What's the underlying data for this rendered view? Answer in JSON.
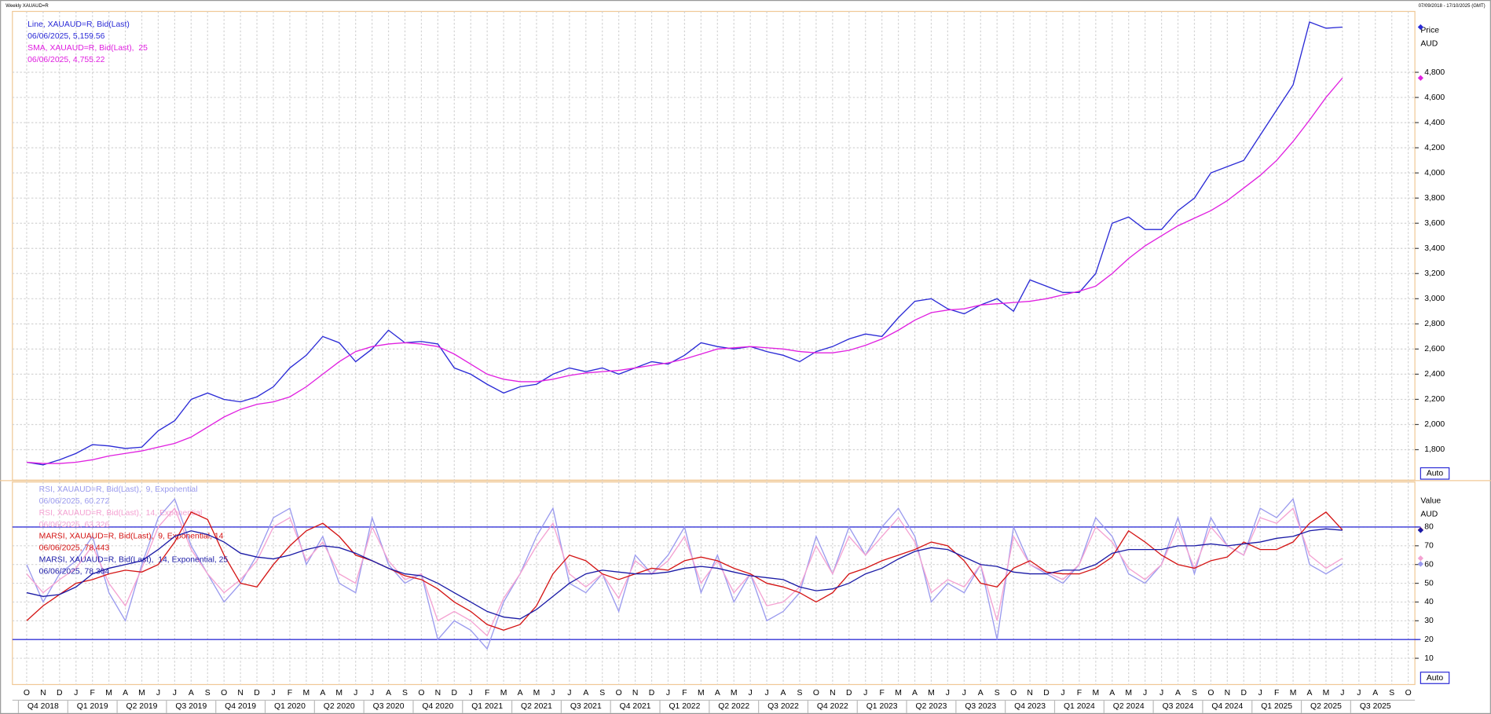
{
  "header": {
    "left": "Weekly XAUAUD=R",
    "right": "07/09/2018 - 17/10/2025 (GMT)"
  },
  "chart_data": [
    {
      "type": "line",
      "ylabel": "Price",
      "yunit": "AUD",
      "button": "Auto",
      "grid": true,
      "ylim": [
        1558,
        5284
      ],
      "yticks": [
        {
          "value": 1800,
          "label": "1,800"
        },
        {
          "value": 2000,
          "label": "2,000"
        },
        {
          "value": 2200,
          "label": "2,200"
        },
        {
          "value": 2400,
          "label": "2,400"
        },
        {
          "value": 2600,
          "label": "2,600"
        },
        {
          "value": 2800,
          "label": "2,800"
        },
        {
          "value": 3000,
          "label": "3,000"
        },
        {
          "value": 3200,
          "label": "3,200"
        },
        {
          "value": 3400,
          "label": "3,400"
        },
        {
          "value": 3600,
          "label": "3,600"
        },
        {
          "value": 3800,
          "label": "3,800"
        },
        {
          "value": 4000,
          "label": "4,000"
        },
        {
          "value": 4200,
          "label": "4,200"
        },
        {
          "value": 4400,
          "label": "4,400"
        },
        {
          "value": 4600,
          "label": "4,600"
        },
        {
          "value": 4800,
          "label": "4,800"
        }
      ],
      "x": [
        "2018-10",
        "2018-11",
        "2018-12",
        "2019-01",
        "2019-02",
        "2019-03",
        "2019-04",
        "2019-05",
        "2019-06",
        "2019-07",
        "2019-08",
        "2019-09",
        "2019-10",
        "2019-11",
        "2019-12",
        "2020-01",
        "2020-02",
        "2020-03",
        "2020-04",
        "2020-05",
        "2020-06",
        "2020-07",
        "2020-08",
        "2020-09",
        "2020-10",
        "2020-11",
        "2020-12",
        "2021-01",
        "2021-02",
        "2021-03",
        "2021-04",
        "2021-05",
        "2021-06",
        "2021-07",
        "2021-08",
        "2021-09",
        "2021-10",
        "2021-11",
        "2021-12",
        "2022-01",
        "2022-02",
        "2022-03",
        "2022-04",
        "2022-05",
        "2022-06",
        "2022-07",
        "2022-08",
        "2022-09",
        "2022-10",
        "2022-11",
        "2022-12",
        "2023-01",
        "2023-02",
        "2023-03",
        "2023-04",
        "2023-05",
        "2023-06",
        "2023-07",
        "2023-08",
        "2023-09",
        "2023-10",
        "2023-11",
        "2023-12",
        "2024-01",
        "2024-02",
        "2024-03",
        "2024-04",
        "2024-05",
        "2024-06",
        "2024-07",
        "2024-08",
        "2024-09",
        "2024-10",
        "2024-11",
        "2024-12",
        "2025-01",
        "2025-02",
        "2025-03",
        "2025-04",
        "2025-05",
        "2025-06"
      ],
      "series": [
        {
          "name": "Line, XAUAUD=R, Bid(Last)",
          "last_label": "06/06/2025, 5,159.56",
          "color": "#2a2ad6",
          "values": [
            1700,
            1680,
            1720,
            1770,
            1840,
            1830,
            1810,
            1820,
            1950,
            2030,
            2200,
            2250,
            2200,
            2180,
            2220,
            2300,
            2450,
            2550,
            2700,
            2650,
            2500,
            2600,
            2750,
            2650,
            2660,
            2640,
            2450,
            2400,
            2320,
            2250,
            2300,
            2320,
            2400,
            2450,
            2420,
            2450,
            2400,
            2450,
            2500,
            2480,
            2550,
            2650,
            2620,
            2600,
            2620,
            2580,
            2550,
            2500,
            2580,
            2620,
            2680,
            2720,
            2700,
            2850,
            2980,
            3000,
            2920,
            2880,
            2950,
            3000,
            2900,
            3150,
            3100,
            3050,
            3050,
            3200,
            3600,
            3650,
            3550,
            3550,
            3700,
            3800,
            4000,
            4050,
            4100,
            4300,
            4500,
            4700,
            5200,
            5150,
            5159.56
          ]
        },
        {
          "name": "SMA, XAUAUD=R, Bid(Last),  25",
          "last_label": "06/06/2025, 4,755.22",
          "color": "#e020e0",
          "values": [
            1700,
            1690,
            1690,
            1700,
            1720,
            1750,
            1770,
            1790,
            1820,
            1850,
            1900,
            1980,
            2060,
            2120,
            2160,
            2180,
            2220,
            2300,
            2400,
            2500,
            2580,
            2620,
            2640,
            2650,
            2640,
            2620,
            2560,
            2480,
            2400,
            2360,
            2340,
            2340,
            2360,
            2390,
            2410,
            2420,
            2430,
            2450,
            2470,
            2490,
            2520,
            2560,
            2600,
            2610,
            2620,
            2610,
            2600,
            2580,
            2570,
            2570,
            2590,
            2630,
            2680,
            2750,
            2830,
            2890,
            2910,
            2920,
            2950,
            2960,
            2970,
            2980,
            3000,
            3030,
            3060,
            3100,
            3200,
            3320,
            3420,
            3500,
            3580,
            3640,
            3700,
            3780,
            3880,
            3980,
            4100,
            4250,
            4420,
            4600,
            4755.22
          ]
        }
      ]
    },
    {
      "type": "line",
      "ylabel": "Value",
      "yunit": "AUD",
      "button": "Auto",
      "grid": true,
      "ylim": [
        -4,
        104
      ],
      "yticks": [
        10,
        20,
        30,
        40,
        50,
        60,
        70,
        80
      ],
      "hlines": [
        80,
        20
      ],
      "hline_color": "#3535d8",
      "x": [
        "2018-10",
        "2018-11",
        "2018-12",
        "2019-01",
        "2019-02",
        "2019-03",
        "2019-04",
        "2019-05",
        "2019-06",
        "2019-07",
        "2019-08",
        "2019-09",
        "2019-10",
        "2019-11",
        "2019-12",
        "2020-01",
        "2020-02",
        "2020-03",
        "2020-04",
        "2020-05",
        "2020-06",
        "2020-07",
        "2020-08",
        "2020-09",
        "2020-10",
        "2020-11",
        "2020-12",
        "2021-01",
        "2021-02",
        "2021-03",
        "2021-04",
        "2021-05",
        "2021-06",
        "2021-07",
        "2021-08",
        "2021-09",
        "2021-10",
        "2021-11",
        "2021-12",
        "2022-01",
        "2022-02",
        "2022-03",
        "2022-04",
        "2022-05",
        "2022-06",
        "2022-07",
        "2022-08",
        "2022-09",
        "2022-10",
        "2022-11",
        "2022-12",
        "2023-01",
        "2023-02",
        "2023-03",
        "2023-04",
        "2023-05",
        "2023-06",
        "2023-07",
        "2023-08",
        "2023-09",
        "2023-10",
        "2023-11",
        "2023-12",
        "2024-01",
        "2024-02",
        "2024-03",
        "2024-04",
        "2024-05",
        "2024-06",
        "2024-07",
        "2024-08",
        "2024-09",
        "2024-10",
        "2024-11",
        "2024-12",
        "2025-01",
        "2025-02",
        "2025-03",
        "2025-04",
        "2025-05",
        "2025-06"
      ],
      "x_month_labels": [
        "O",
        "N",
        "D",
        "J",
        "F",
        "M",
        "A",
        "M",
        "J",
        "J",
        "A",
        "S",
        "O",
        "N",
        "D",
        "J",
        "F",
        "M",
        "A",
        "M",
        "J",
        "J",
        "A",
        "S",
        "O",
        "N",
        "D",
        "J",
        "F",
        "M",
        "A",
        "M",
        "J",
        "J",
        "A",
        "S",
        "O",
        "N",
        "D",
        "J",
        "F",
        "M",
        "A",
        "M",
        "J",
        "J",
        "A",
        "S",
        "O",
        "N",
        "D",
        "J",
        "F",
        "M",
        "A",
        "M",
        "J",
        "J",
        "A",
        "S",
        "O",
        "N",
        "D",
        "J",
        "F",
        "M",
        "A",
        "M",
        "J",
        "J",
        "A",
        "S",
        "O",
        "N",
        "D",
        "J",
        "F",
        "M",
        "A",
        "M",
        "J",
        "J",
        "A",
        "S",
        "O"
      ],
      "x_quarter_labels": [
        "Q4 2018",
        "Q1 2019",
        "Q2 2019",
        "Q3 2019",
        "Q4 2019",
        "Q1 2020",
        "Q2 2020",
        "Q3 2020",
        "Q4 2020",
        "Q1 2021",
        "Q2 2021",
        "Q3 2021",
        "Q4 2021",
        "Q1 2022",
        "Q2 2022",
        "Q3 2022",
        "Q4 2022",
        "Q1 2023",
        "Q2 2023",
        "Q3 2023",
        "Q4 2023",
        "Q1 2024",
        "Q2 2024",
        "Q3 2024",
        "Q4 2024",
        "Q1 2025",
        "Q2 2025",
        "Q3 2025"
      ],
      "series": [
        {
          "name": "RSI, XAUAUD=R, Bid(Last),  9, Exponential",
          "last_label": "06/06/2025, 60.272",
          "color": "#9a9aee",
          "values": [
            60,
            40,
            55,
            62,
            75,
            45,
            30,
            60,
            85,
            95,
            70,
            55,
            40,
            50,
            65,
            85,
            90,
            60,
            75,
            50,
            45,
            85,
            60,
            50,
            55,
            20,
            30,
            25,
            15,
            40,
            55,
            75,
            90,
            50,
            45,
            55,
            35,
            65,
            55,
            65,
            80,
            45,
            65,
            40,
            55,
            30,
            35,
            45,
            75,
            55,
            80,
            65,
            80,
            90,
            75,
            40,
            50,
            45,
            60,
            20,
            80,
            60,
            55,
            50,
            60,
            85,
            75,
            55,
            50,
            60,
            85,
            55,
            85,
            70,
            65,
            90,
            85,
            95,
            60,
            55,
            60.272
          ]
        },
        {
          "name": "RSI, XAUAUD=R, Bid(Last),  14, Exponential",
          "last_label": "06/06/2025, 63.326",
          "color": "#f4a2d2",
          "values": [
            55,
            45,
            52,
            58,
            70,
            50,
            38,
            58,
            80,
            90,
            68,
            55,
            45,
            52,
            62,
            80,
            85,
            62,
            72,
            55,
            50,
            80,
            62,
            52,
            55,
            30,
            35,
            30,
            22,
            42,
            55,
            70,
            82,
            55,
            48,
            55,
            42,
            62,
            55,
            62,
            75,
            50,
            62,
            45,
            55,
            38,
            40,
            48,
            70,
            55,
            75,
            65,
            75,
            85,
            72,
            45,
            52,
            48,
            60,
            30,
            75,
            60,
            56,
            52,
            60,
            80,
            72,
            58,
            52,
            60,
            80,
            58,
            80,
            70,
            65,
            85,
            82,
            90,
            65,
            58,
            63.326
          ]
        },
        {
          "name": "MARSI, XAUAUD=R, Bid(Last),  9, Exponential, 14",
          "last_label": "06/06/2025, 78.443",
          "color": "#d41414",
          "values": [
            30,
            38,
            44,
            50,
            52,
            55,
            57,
            56,
            60,
            72,
            88,
            84,
            65,
            50,
            48,
            60,
            70,
            78,
            82,
            75,
            65,
            62,
            58,
            54,
            52,
            47,
            40,
            35,
            28,
            25,
            28,
            38,
            55,
            65,
            62,
            55,
            52,
            55,
            58,
            57,
            62,
            64,
            62,
            58,
            55,
            50,
            48,
            45,
            40,
            45,
            55,
            58,
            62,
            65,
            68,
            72,
            70,
            62,
            50,
            48,
            58,
            62,
            56,
            55,
            55,
            58,
            64,
            78,
            72,
            65,
            60,
            58,
            62,
            64,
            72,
            68,
            68,
            72,
            82,
            88,
            78.443
          ]
        },
        {
          "name": "MARSI, XAUAUD=R, Bid(Last),  14, Exponential, 25",
          "last_label": "06/06/2025, 78.304",
          "color": "#1a1aa6",
          "values": [
            45,
            43,
            44,
            48,
            55,
            58,
            60,
            62,
            68,
            75,
            78,
            76,
            72,
            66,
            64,
            63,
            65,
            68,
            70,
            69,
            66,
            62,
            58,
            55,
            54,
            50,
            45,
            40,
            35,
            32,
            31,
            36,
            43,
            50,
            55,
            57,
            56,
            55,
            55,
            56,
            58,
            59,
            58,
            56,
            54,
            53,
            52,
            48,
            46,
            47,
            50,
            55,
            58,
            63,
            67,
            69,
            68,
            64,
            60,
            59,
            56,
            55,
            55,
            57,
            57,
            60,
            66,
            68,
            68,
            68,
            70,
            70,
            71,
            70,
            71,
            72,
            74,
            75,
            78,
            79,
            78.304
          ]
        }
      ]
    }
  ]
}
